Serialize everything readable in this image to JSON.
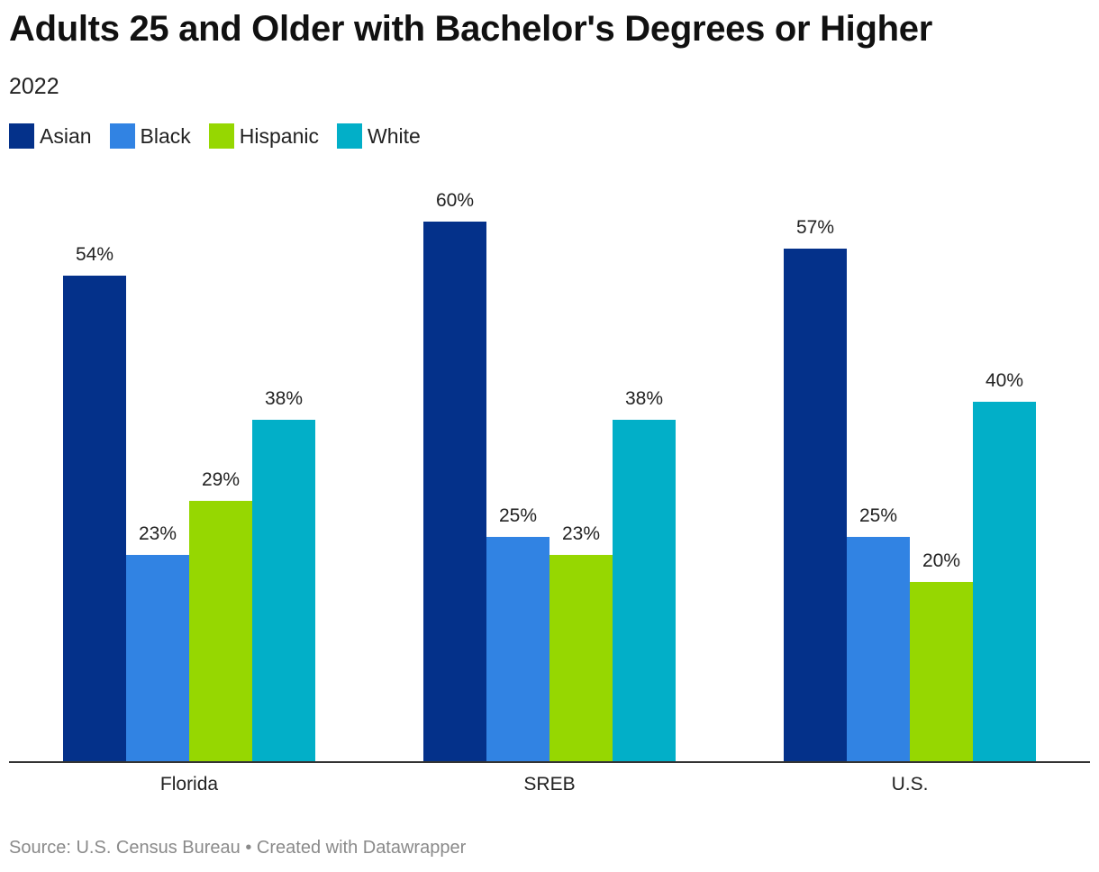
{
  "chart_data": {
    "type": "bar",
    "title": "Adults 25 and Older with Bachelor's Degrees or Higher",
    "subtitle": "2022",
    "categories": [
      "Florida",
      "SREB",
      "U.S."
    ],
    "series": [
      {
        "name": "Asian",
        "color": "#04318a",
        "values": [
          54,
          60,
          57
        ]
      },
      {
        "name": "Black",
        "color": "#3183e3",
        "values": [
          23,
          25,
          25
        ]
      },
      {
        "name": "Hispanic",
        "color": "#96d701",
        "values": [
          29,
          23,
          20
        ]
      },
      {
        "name": "White",
        "color": "#02afc8",
        "values": [
          38,
          38,
          40
        ]
      }
    ],
    "value_suffix": "%",
    "ylim": [
      0,
      60
    ],
    "legend_position": "top-left",
    "grid": false,
    "source": "Source: U.S. Census Bureau • Created with Datawrapper"
  }
}
